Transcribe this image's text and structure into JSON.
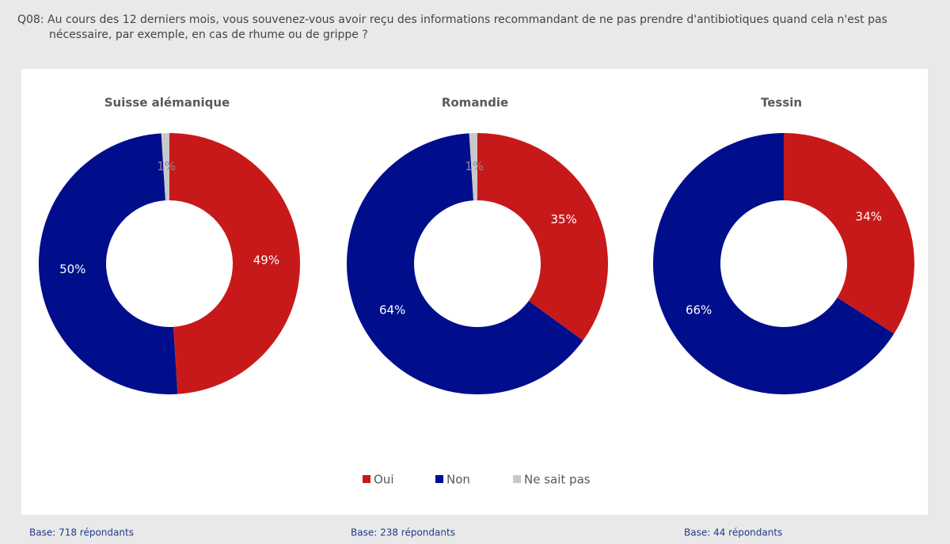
{
  "question": "Q08: Au cours des 12 derniers mois, vous souvenez-vous avoir reçu des informations recommandant de ne pas prendre d'antibiotiques quand cela n'est pas nécessaire, par exemple, en cas de rhume ou de grippe ?",
  "chart_data": [
    {
      "type": "donut",
      "title": "Suisse alémanique",
      "categories": [
        "Oui",
        "Non",
        "Ne sait pas"
      ],
      "values": [
        49,
        50,
        1
      ],
      "value_labels": [
        "49%",
        "50%",
        "1%"
      ],
      "colors": [
        "#c8191a",
        "#000e8c",
        "#c8c8c8"
      ],
      "base": "Base: 718 répondants"
    },
    {
      "type": "donut",
      "title": "Romandie",
      "categories": [
        "Oui",
        "Non",
        "Ne sait pas"
      ],
      "values": [
        35,
        64,
        1
      ],
      "value_labels": [
        "35%",
        "64%",
        "1%"
      ],
      "colors": [
        "#c8191a",
        "#000e8c",
        "#c8c8c8"
      ],
      "base": "Base: 238 répondants"
    },
    {
      "type": "donut",
      "title": "Tessin",
      "categories": [
        "Oui",
        "Non"
      ],
      "values": [
        34,
        66
      ],
      "value_labels": [
        "34%",
        "66%"
      ],
      "colors": [
        "#c8191a",
        "#000e8c"
      ],
      "base": "Base: 44 répondants"
    }
  ]
}
